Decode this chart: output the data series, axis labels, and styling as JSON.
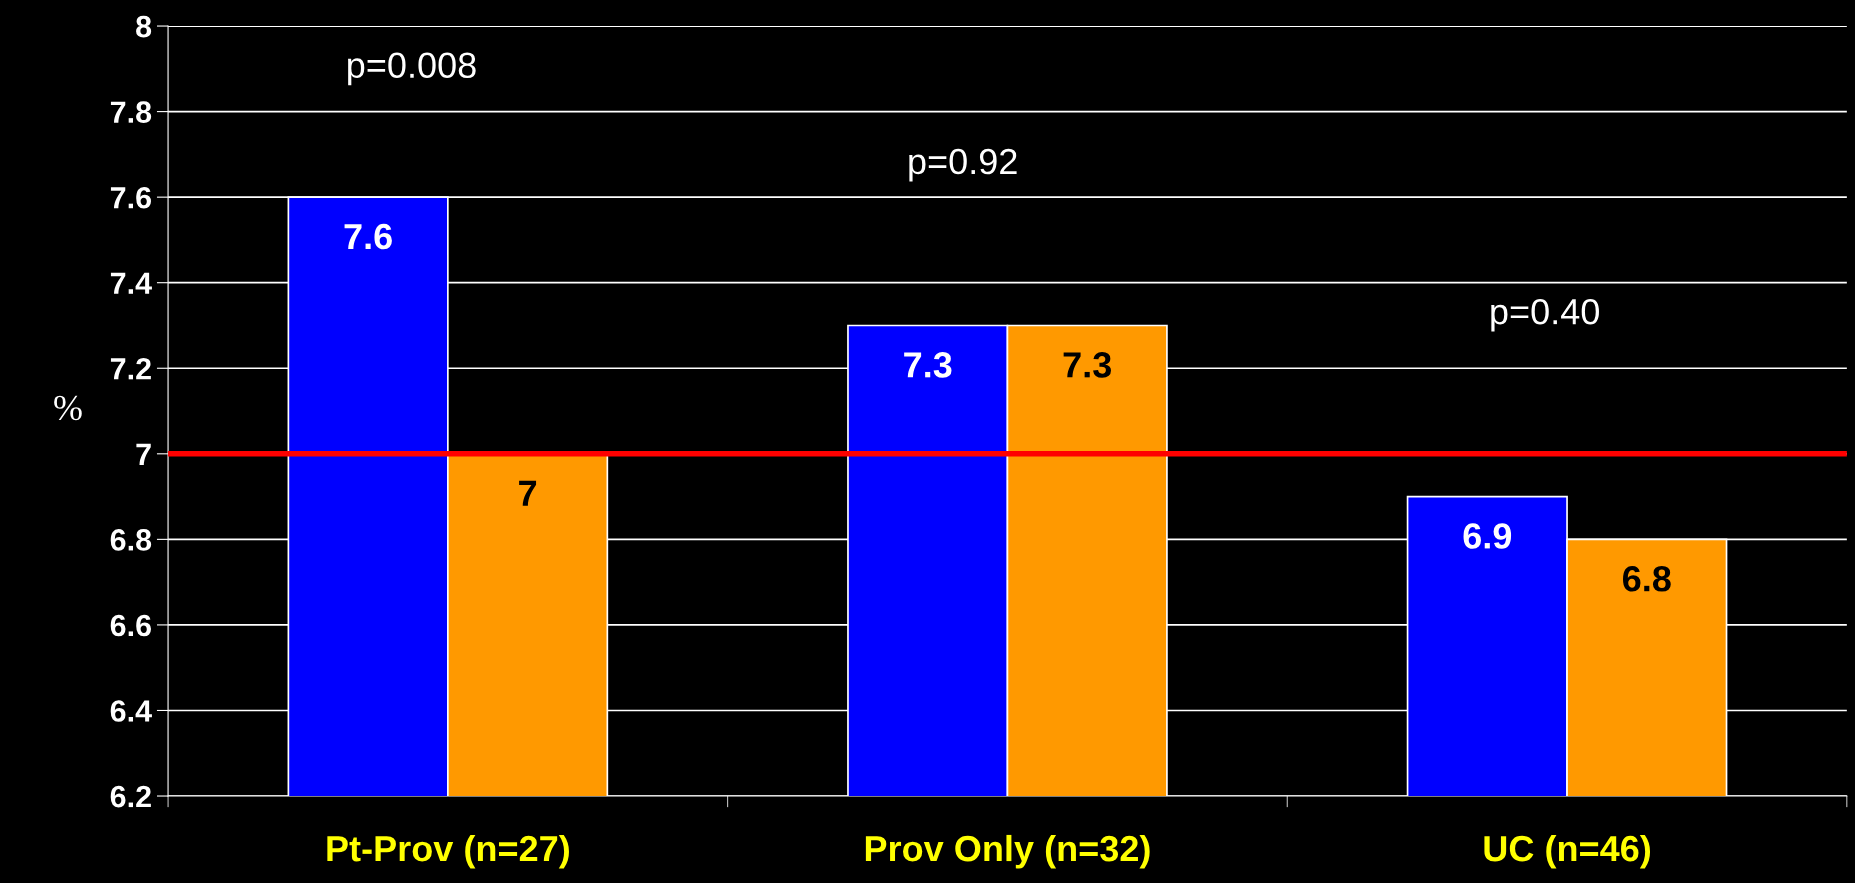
{
  "chart_data": {
    "type": "bar",
    "ylabel": "%",
    "categories": [
      "Pt-Prov (n=27)",
      "Prov Only (n=32)",
      "UC (n=46)"
    ],
    "series": [
      {
        "color": "#0000ff",
        "values": [
          7.6,
          7.3,
          6.9
        ]
      },
      {
        "color": "#ff9900",
        "values": [
          7.0,
          7.3,
          6.8
        ]
      }
    ],
    "ylim": [
      6.2,
      8
    ],
    "yticks": [
      6.2,
      6.4,
      6.6,
      6.8,
      7,
      7.2,
      7.4,
      7.6,
      7.8,
      8
    ],
    "grid": "y",
    "data_labels": true,
    "ref_lines": [
      {
        "axis": "y",
        "value": 7,
        "color": "#ff0000"
      }
    ],
    "annotations": [
      "p=0.008",
      "p=0.92",
      "p=0.40"
    ]
  }
}
